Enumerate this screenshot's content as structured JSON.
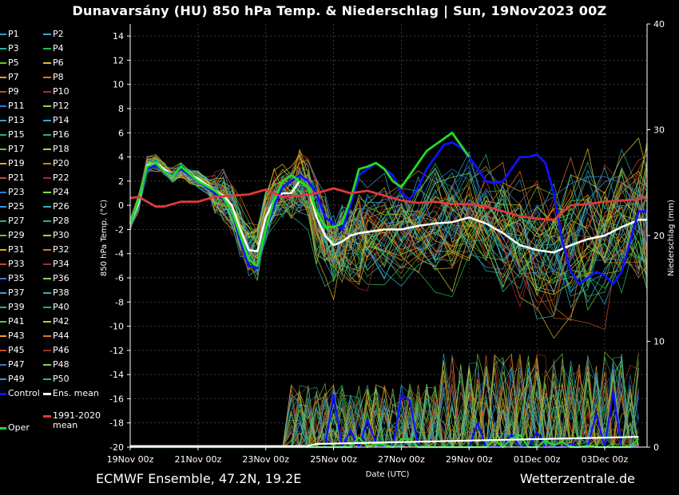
{
  "header": {
    "title": "Dunavarsány  (HU)  850 hPa Temp. & Niederschlag | Sun, 19Nov2023 00Z"
  },
  "footer": {
    "left": "ECMWF Ensemble, 47.2N, 19.2E",
    "right": "Wetterzentrale.de"
  },
  "colors": {
    "background": "#000000",
    "grid": "#555555",
    "axis": "#ffffff",
    "control": "#1010ff",
    "mean": "#ffffff",
    "clim": "#e03a3a",
    "oper": "#22dd22",
    "palette": [
      "#3a9ad9",
      "#2bb0c0",
      "#1db2a0",
      "#28b65a",
      "#6ac32c",
      "#d8c424",
      "#e3a91e",
      "#d67c1c",
      "#c24f20",
      "#a82a2a",
      "#2a7fd0",
      "#8ad840"
    ]
  },
  "legend": {
    "members": [
      "P1",
      "P2",
      "P3",
      "P4",
      "P5",
      "P6",
      "P7",
      "P8",
      "P9",
      "P10",
      "P11",
      "P12",
      "P13",
      "P14",
      "P15",
      "P16",
      "P17",
      "P18",
      "P19",
      "P20",
      "P21",
      "P22",
      "P23",
      "P24",
      "P25",
      "P26",
      "P27",
      "P28",
      "P29",
      "P30",
      "P31",
      "P32",
      "P33",
      "P34",
      "P35",
      "P36",
      "P37",
      "P38",
      "P39",
      "P40",
      "P41",
      "P42",
      "P43",
      "P44",
      "P45",
      "P46",
      "P47",
      "P48",
      "P49",
      "P50"
    ],
    "control": "Control",
    "mean": "Ens. mean",
    "clim_line1": "1991-2020",
    "clim_line2": "mean",
    "oper": "Oper"
  },
  "chart_data": {
    "type": "line",
    "title": "850 hPa Temp. & Niederschlag",
    "xlabel": "Date (UTC)",
    "ylabel": "850 hPa Temp. (°C)",
    "y2label": "Niederschlag (mm)",
    "ylim": [
      -20,
      15
    ],
    "y2lim": [
      0,
      40
    ],
    "yticks": [
      14,
      12,
      10,
      8,
      6,
      4,
      2,
      0,
      -2,
      -4,
      -6,
      -8,
      -10,
      -12,
      -14,
      -16,
      -18,
      -20
    ],
    "y2ticks": [
      40,
      30,
      20,
      10,
      0
    ],
    "xlim": [
      0,
      15.25
    ],
    "xticks": [
      {
        "pos": 0,
        "label": "19Nov 00z"
      },
      {
        "pos": 2,
        "label": "21Nov 00z"
      },
      {
        "pos": 4,
        "label": "23Nov 00z"
      },
      {
        "pos": 6,
        "label": "25Nov 00z"
      },
      {
        "pos": 8,
        "label": "27Nov 00z"
      },
      {
        "pos": 10,
        "label": "29Nov 00z"
      },
      {
        "pos": 12,
        "label": "01Dec 00z"
      },
      {
        "pos": 14,
        "label": "03Dec 00z"
      }
    ],
    "series": [
      {
        "name": "Ens. mean",
        "x": [
          0,
          0.25,
          0.5,
          0.75,
          1,
          1.25,
          1.5,
          1.75,
          2,
          2.25,
          2.5,
          2.75,
          3,
          3.25,
          3.5,
          3.75,
          4,
          4.25,
          4.5,
          4.75,
          5,
          5.25,
          5.5,
          5.75,
          6,
          6.25,
          6.5,
          6.75,
          7,
          7.5,
          8,
          8.5,
          9,
          9.5,
          10,
          10.5,
          11,
          11.5,
          12,
          12.5,
          13,
          13.5,
          14,
          14.5,
          15,
          15.25
        ],
        "y": [
          -1.5,
          0.2,
          3.3,
          3.5,
          3.0,
          2.5,
          3.0,
          2.5,
          2.2,
          1.7,
          1.2,
          0.8,
          0.0,
          -2.0,
          -3.7,
          -3.8,
          -1.0,
          0.5,
          1.0,
          1.0,
          2.0,
          1.5,
          -1.0,
          -2.5,
          -3.3,
          -3.0,
          -2.5,
          -2.3,
          -2.2,
          -2.0,
          -2.0,
          -1.7,
          -1.5,
          -1.4,
          -1.0,
          -1.5,
          -2.3,
          -3.3,
          -3.7,
          -3.9,
          -3.3,
          -2.8,
          -2.5,
          -1.8,
          -1.2,
          -1.2
        ]
      },
      {
        "name": "Control",
        "x": [
          0,
          0.25,
          0.5,
          0.75,
          1,
          1.25,
          1.5,
          1.75,
          2,
          2.25,
          2.5,
          2.75,
          3,
          3.25,
          3.5,
          3.75,
          4,
          4.25,
          4.5,
          4.75,
          5,
          5.25,
          5.5,
          5.75,
          6,
          6.25,
          6.5,
          6.75,
          7,
          7.25,
          7.5,
          7.75,
          8,
          8.25,
          8.5,
          8.75,
          9,
          9.25,
          9.5,
          9.75,
          10,
          10.25,
          10.5,
          10.75,
          11,
          11.25,
          11.5,
          11.75,
          12,
          12.25,
          12.5,
          12.75,
          13,
          13.25,
          13.5,
          13.75,
          14,
          14.25,
          14.5,
          14.75,
          15,
          15.25
        ],
        "y": [
          -1.5,
          0.5,
          3.0,
          3.3,
          2.8,
          2.5,
          3.0,
          2.5,
          2.0,
          1.5,
          1.0,
          0.5,
          -0.5,
          -3.0,
          -5.0,
          -5.2,
          -2.0,
          0.0,
          1.5,
          2.0,
          2.5,
          2.0,
          1.0,
          -1.0,
          -1.5,
          -2.0,
          0.0,
          2.5,
          3.0,
          3.5,
          3.0,
          2.5,
          1.0,
          0.5,
          1.5,
          3.0,
          4.0,
          5.0,
          5.2,
          4.8,
          4.0,
          3.0,
          2.0,
          1.8,
          2.0,
          3.0,
          4.0,
          4.0,
          4.2,
          3.5,
          1.0,
          -3.0,
          -5.5,
          -6.5,
          -6.0,
          -5.5,
          -5.8,
          -6.5,
          -5.5,
          -3.0,
          -0.5,
          -0.5
        ]
      },
      {
        "name": "Oper",
        "x": [
          0,
          0.25,
          0.5,
          0.75,
          1,
          1.25,
          1.5,
          1.75,
          2,
          2.25,
          2.5,
          2.75,
          3,
          3.25,
          3.5,
          3.75,
          4,
          4.25,
          4.5,
          4.75,
          5,
          5.25,
          5.5,
          5.75,
          6,
          6.25,
          6.5,
          6.75,
          7,
          7.25,
          7.5,
          7.75,
          8,
          8.25,
          8.5,
          8.75,
          9,
          9.25,
          9.5,
          9.75,
          10
        ],
        "y": [
          -1.5,
          0.5,
          3.2,
          3.5,
          2.8,
          2.4,
          3.2,
          2.6,
          2.0,
          1.6,
          1.2,
          0.6,
          -0.5,
          -2.5,
          -4.5,
          -5.0,
          -2.0,
          0.5,
          2.0,
          2.5,
          2.0,
          1.5,
          -0.5,
          -1.8,
          -1.8,
          -1.5,
          0.5,
          3.0,
          3.2,
          3.5,
          3.0,
          2.0,
          1.5,
          2.5,
          3.5,
          4.5,
          5.0,
          5.5,
          6.0,
          5.0,
          4.0
        ]
      },
      {
        "name": "1991-2020 mean",
        "x": [
          0,
          0.25,
          0.5,
          0.75,
          1,
          1.5,
          2,
          2.5,
          3,
          3.5,
          4,
          4.5,
          5,
          5.5,
          6,
          6.5,
          7,
          7.5,
          8,
          8.5,
          9,
          9.5,
          10,
          10.5,
          11,
          11.5,
          12,
          12.5,
          13,
          13.5,
          14,
          14.5,
          15,
          15.25
        ],
        "y": [
          0.6,
          0.7,
          0.3,
          -0.1,
          -0.1,
          0.3,
          0.3,
          0.7,
          0.8,
          0.9,
          1.3,
          0.7,
          0.8,
          1.0,
          1.4,
          1.0,
          1.2,
          0.8,
          0.4,
          0.2,
          0.3,
          0.1,
          0.1,
          -0.1,
          -0.5,
          -0.9,
          -1.1,
          -1.2,
          0.0,
          0.1,
          0.3,
          0.4,
          0.5,
          0.7
        ]
      }
    ]
  }
}
